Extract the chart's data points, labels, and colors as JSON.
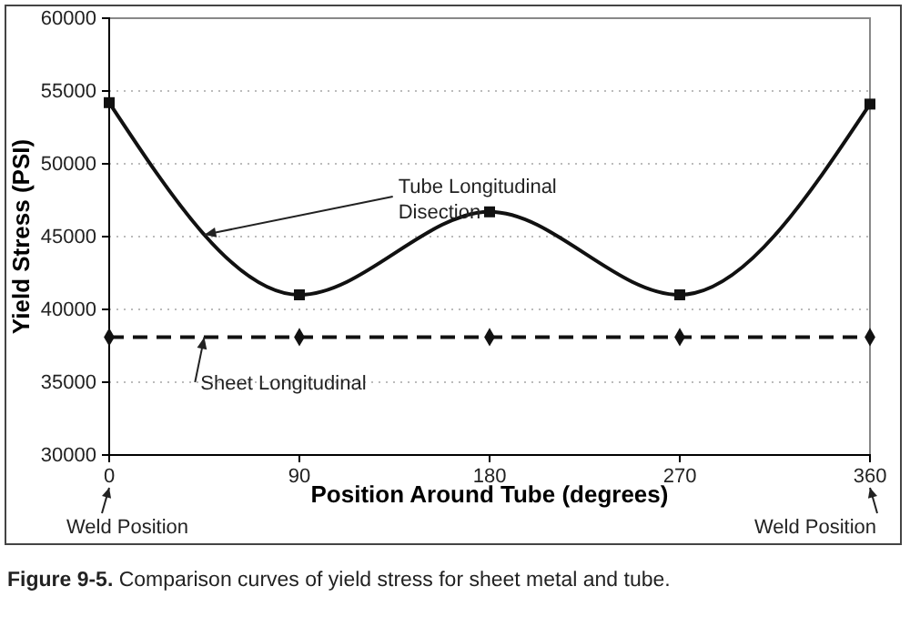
{
  "chart_data": {
    "type": "line",
    "xlabel": "Position Around Tube (degrees)",
    "ylabel": "Yield Stress (PSI)",
    "x": [
      0,
      90,
      180,
      270,
      360
    ],
    "series": [
      {
        "name": "Tube Longitudinal Disection",
        "color": "#111111",
        "values": [
          54200,
          41000,
          46700,
          41000,
          54100
        ],
        "marker": "square",
        "line_style": "solid"
      },
      {
        "name": "Sheet Longitudinal",
        "color": "#111111",
        "values": [
          38100,
          38100,
          38100,
          38100,
          38100
        ],
        "marker": "diamond",
        "line_style": "dashed"
      }
    ],
    "xlim": [
      0,
      360
    ],
    "xticks": [
      0,
      90,
      180,
      270,
      360
    ],
    "ylim": [
      30000,
      60000
    ],
    "yticks": [
      30000,
      35000,
      40000,
      45000,
      50000,
      55000,
      60000
    ],
    "grid": "y",
    "annotations": [
      "Weld Position",
      "Weld Position",
      "Figure 9-5. Comparison curves of yield stress for sheet metal and tube."
    ]
  }
}
